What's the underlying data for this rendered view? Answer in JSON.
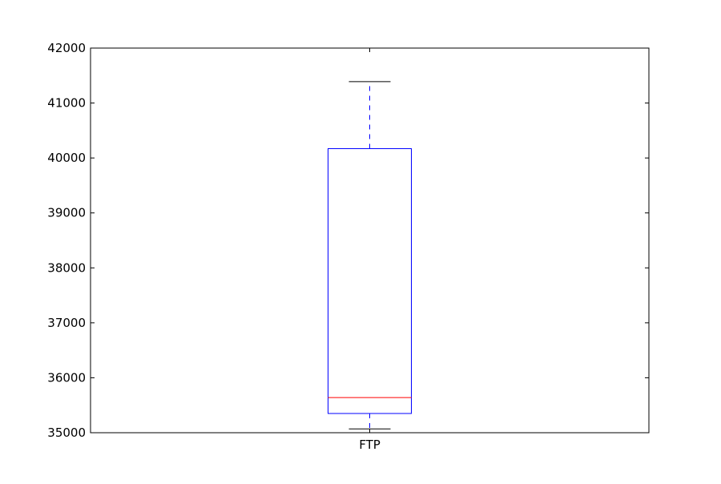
{
  "chart_data": {
    "type": "box",
    "categories": [
      "FTP"
    ],
    "boxes": [
      {
        "label": "FTP",
        "whisker_low": 35070,
        "q1": 35350,
        "median": 35640,
        "q3": 40170,
        "whisker_high": 41390
      }
    ],
    "ylim": [
      35000,
      42000
    ],
    "yticks": [
      "35000",
      "36000",
      "37000",
      "38000",
      "39000",
      "40000",
      "41000",
      "42000"
    ],
    "ytick_values": [
      35000,
      36000,
      37000,
      38000,
      39000,
      40000,
      41000,
      42000
    ],
    "title": "",
    "xlabel": "",
    "ylabel": "",
    "grid": false,
    "colors": {
      "box": "#0000ff",
      "median": "#ff0000",
      "whisker": "#0000ff",
      "cap": "#000000",
      "axes": "#000000"
    }
  }
}
